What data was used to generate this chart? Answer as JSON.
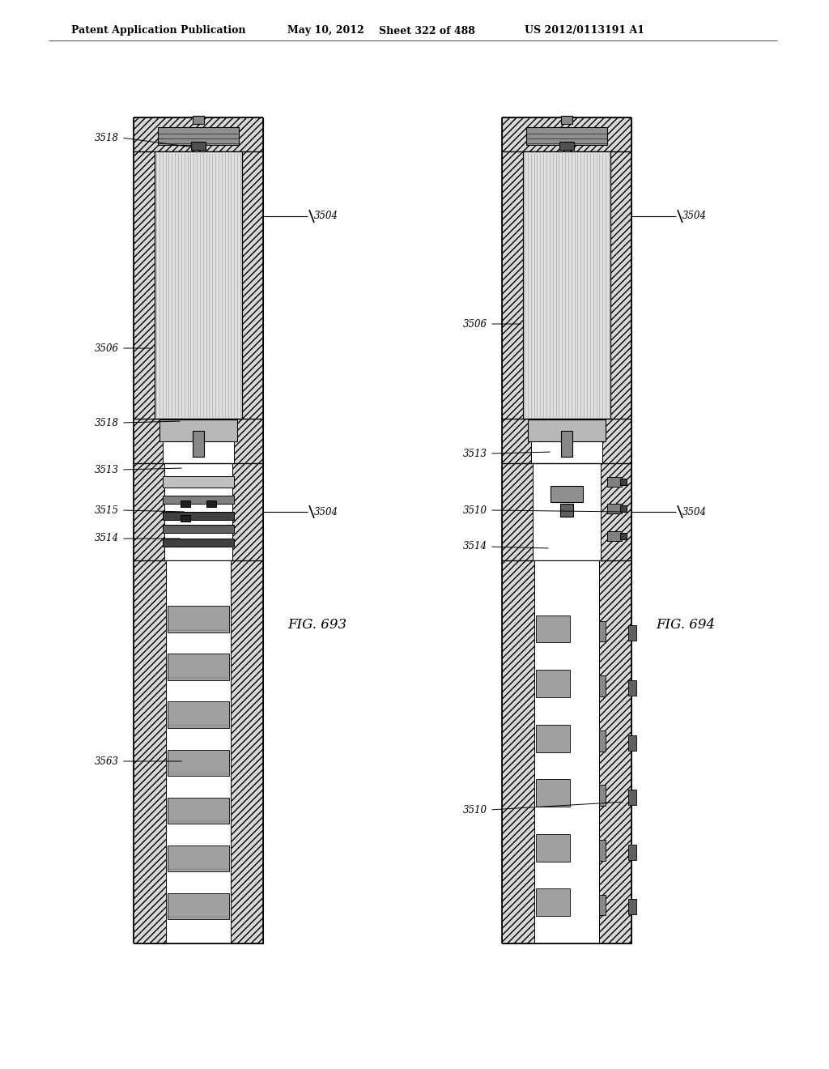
{
  "bg_color": "#f0f0f0",
  "page_bg": "#ffffff",
  "header_text": "Patent Application Publication",
  "header_date": "May 10, 2012",
  "header_sheet": "Sheet 322 of 488",
  "header_patent": "US 2012/0113191 A1",
  "fig_left_label": "FIG. 693",
  "fig_right_label": "FIG. 694",
  "line_color": "#000000",
  "hatch_gray": "#d8d8d8",
  "coil_gray": "#c8c8c8",
  "dark_gray": "#505050",
  "mid_gray": "#909090",
  "light_gray": "#e0e0e0"
}
